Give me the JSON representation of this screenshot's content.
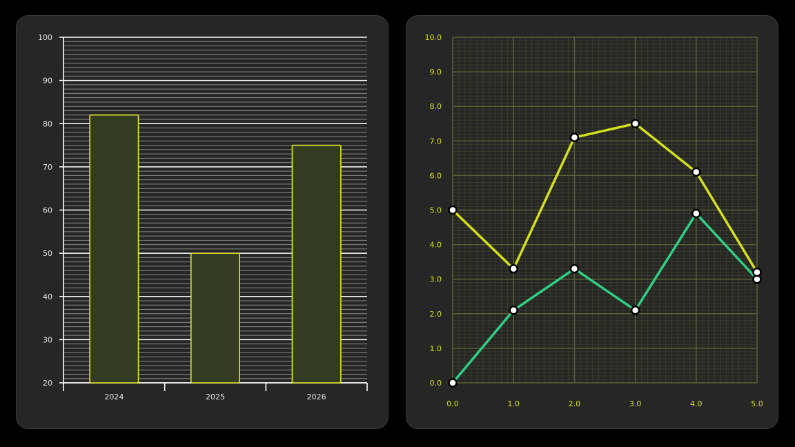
{
  "chart_data": [
    {
      "type": "bar",
      "categories": [
        "2024",
        "2025",
        "2026"
      ],
      "values": [
        82,
        50,
        75
      ],
      "ylim": [
        20,
        100
      ],
      "yticks": [
        20,
        30,
        40,
        50,
        60,
        70,
        80,
        90,
        100
      ],
      "grid": true,
      "colors": {
        "bar_fill": "#333b20",
        "bar_stroke": "#e2e830",
        "axis": "#ffffff",
        "grid_major": "#ffffff",
        "grid_minor": "#8a8a8a",
        "panel": "#262626"
      }
    },
    {
      "type": "line",
      "x": [
        0,
        1,
        2,
        3,
        4,
        5
      ],
      "series": [
        {
          "values": [
            5.0,
            3.3,
            7.1,
            7.5,
            6.1,
            3.2
          ],
          "color": "#d4e01f"
        },
        {
          "values": [
            0.0,
            2.1,
            3.3,
            2.1,
            4.9,
            3.0
          ],
          "color": "#2fd085"
        }
      ],
      "xlim": [
        0,
        5
      ],
      "ylim": [
        0,
        10
      ],
      "xticks": [
        "0.0",
        "1.0",
        "2.0",
        "3.0",
        "4.0",
        "5.0"
      ],
      "yticks": [
        "0.0",
        "1.0",
        "2.0",
        "3.0",
        "4.0",
        "5.0",
        "6.0",
        "7.0",
        "8.0",
        "9.0",
        "10.0"
      ],
      "grid": true,
      "colors": {
        "tick_text": "#d8e21e",
        "grid_major": "#5a6135",
        "grid_minor": "#3c4128",
        "marker_fill": "#ffffff",
        "marker_stroke": "#000000",
        "panel": "#262626"
      }
    }
  ]
}
